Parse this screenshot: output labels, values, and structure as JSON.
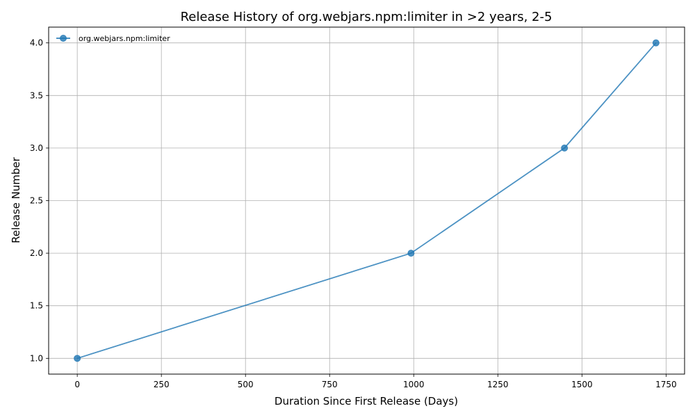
{
  "chart_data": {
    "type": "line",
    "title": "Release History of org.webjars.npm:limiter in >2 years, 2-5",
    "xlabel": "Duration Since First Release (Days)",
    "ylabel": "Release Number",
    "xlim": [
      -85,
      1805
    ],
    "ylim": [
      0.85,
      4.15
    ],
    "xticks": [
      0,
      250,
      500,
      750,
      1000,
      1250,
      1500,
      1750
    ],
    "yticks": [
      1.0,
      1.5,
      2.0,
      2.5,
      3.0,
      3.5,
      4.0
    ],
    "xtick_labels": [
      "0",
      "250",
      "500",
      "750",
      "1000",
      "1250",
      "1500",
      "1750"
    ],
    "ytick_labels": [
      "1.0",
      "1.5",
      "2.0",
      "2.5",
      "3.0",
      "3.5",
      "4.0"
    ],
    "grid": true,
    "legend": "top-left",
    "series": [
      {
        "name": "org.webjars.npm:limiter",
        "color": "#1f77b4",
        "x": [
          0,
          992,
          1448,
          1720
        ],
        "y": [
          1,
          2,
          3,
          4
        ]
      }
    ]
  }
}
